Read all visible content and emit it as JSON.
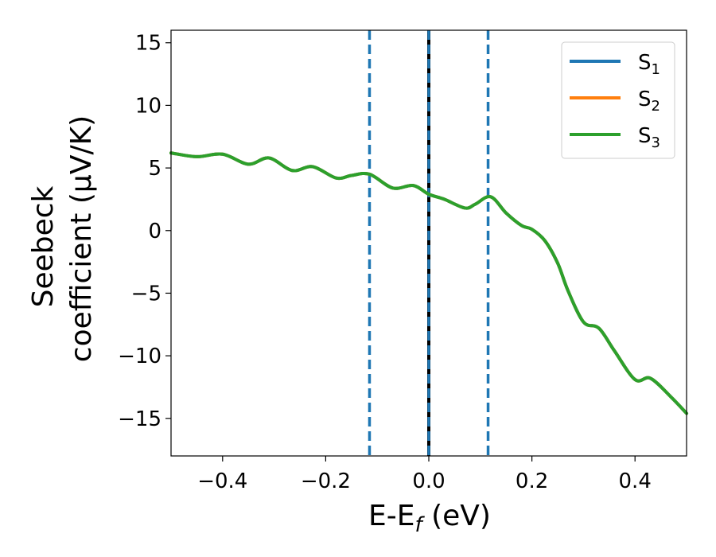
{
  "chart_data": {
    "type": "line",
    "xlabel_main": "E-E",
    "xlabel_sub": "f",
    "xlabel_unit": " (eV)",
    "ylabel_line1": "Seebeck",
    "ylabel_line2": "coefficient  (μV/K)",
    "xlim": [
      -0.5,
      0.5
    ],
    "ylim": [
      -18,
      16
    ],
    "xticks": [
      -0.4,
      -0.2,
      0.0,
      0.2,
      0.4
    ],
    "xtick_labels": [
      "−0.4",
      "−0.2",
      "0.0",
      "0.2",
      "0.4"
    ],
    "yticks": [
      -15,
      -10,
      -5,
      0,
      5,
      10,
      15
    ],
    "ytick_labels": [
      "−15",
      "−10",
      "−5",
      "0",
      "5",
      "10",
      "15"
    ],
    "grid": false,
    "legend_position": "top-right",
    "vlines": [
      {
        "x": -0.115,
        "style": "dashed",
        "color": "#1f77b4"
      },
      {
        "x": 0.115,
        "style": "dashed",
        "color": "#1f77b4"
      },
      {
        "x": 0.0,
        "style": "solid",
        "color": "#000000"
      },
      {
        "x": 0.0,
        "style": "dashed",
        "color": "#1f77b4"
      }
    ],
    "series": [
      {
        "name_main": "S",
        "name_sub": "1",
        "color": "#1f77b4",
        "x": [
          -0.5,
          -0.45,
          -0.4,
          -0.35,
          -0.31,
          -0.265,
          -0.225,
          -0.18,
          -0.15,
          -0.115,
          -0.07,
          -0.03,
          0.0,
          0.03,
          0.07,
          0.09,
          0.12,
          0.15,
          0.18,
          0.2,
          0.225,
          0.25,
          0.27,
          0.3,
          0.33,
          0.36,
          0.4,
          0.43,
          0.47,
          0.5
        ],
        "y": [
          6.2,
          5.9,
          6.1,
          5.3,
          5.8,
          4.8,
          5.1,
          4.2,
          4.4,
          4.5,
          3.4,
          3.6,
          2.9,
          2.5,
          1.8,
          2.1,
          2.7,
          1.4,
          0.4,
          0.1,
          -0.8,
          -2.6,
          -4.8,
          -7.3,
          -7.8,
          -9.6,
          -11.9,
          -11.8,
          -13.3,
          -14.6
        ]
      },
      {
        "name_main": "S",
        "name_sub": "2",
        "color": "#ff7f0e",
        "x": [
          -0.5,
          -0.45,
          -0.4,
          -0.35,
          -0.31,
          -0.265,
          -0.225,
          -0.18,
          -0.15,
          -0.115,
          -0.07,
          -0.03,
          0.0,
          0.03,
          0.07,
          0.09,
          0.12,
          0.15,
          0.18,
          0.2,
          0.225,
          0.25,
          0.27,
          0.3,
          0.33,
          0.36,
          0.4,
          0.43,
          0.47,
          0.5
        ],
        "y": [
          6.2,
          5.9,
          6.1,
          5.3,
          5.8,
          4.8,
          5.1,
          4.2,
          4.4,
          4.5,
          3.4,
          3.6,
          2.9,
          2.5,
          1.8,
          2.1,
          2.7,
          1.4,
          0.4,
          0.1,
          -0.8,
          -2.6,
          -4.8,
          -7.3,
          -7.8,
          -9.6,
          -11.9,
          -11.8,
          -13.3,
          -14.6
        ]
      },
      {
        "name_main": "S",
        "name_sub": "3",
        "color": "#2ca02c",
        "x": [
          -0.5,
          -0.45,
          -0.4,
          -0.35,
          -0.31,
          -0.265,
          -0.225,
          -0.18,
          -0.15,
          -0.115,
          -0.07,
          -0.03,
          0.0,
          0.03,
          0.07,
          0.09,
          0.12,
          0.15,
          0.18,
          0.2,
          0.225,
          0.25,
          0.27,
          0.3,
          0.33,
          0.36,
          0.4,
          0.43,
          0.47,
          0.5
        ],
        "y": [
          6.2,
          5.9,
          6.1,
          5.3,
          5.8,
          4.8,
          5.1,
          4.2,
          4.4,
          4.5,
          3.4,
          3.6,
          2.9,
          2.5,
          1.8,
          2.1,
          2.7,
          1.4,
          0.4,
          0.1,
          -0.8,
          -2.6,
          -4.8,
          -7.3,
          -7.8,
          -9.6,
          -11.9,
          -11.8,
          -13.3,
          -14.6
        ]
      }
    ]
  }
}
